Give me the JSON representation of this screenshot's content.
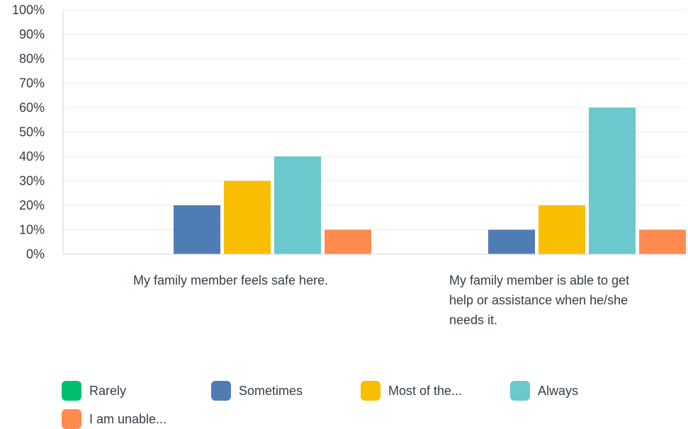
{
  "chart_data": {
    "type": "bar",
    "title": "",
    "xlabel": "",
    "ylabel": "",
    "ylim": [
      0,
      100
    ],
    "yticks": [
      "0%",
      "10%",
      "20%",
      "30%",
      "40%",
      "50%",
      "60%",
      "70%",
      "80%",
      "90%",
      "100%"
    ],
    "grid": true,
    "legend_position": "bottom",
    "categories": [
      "My family member feels safe here.",
      "My family member is able to get help or assistance when he/she needs it."
    ],
    "series": [
      {
        "name": "Rarely",
        "color": "#00bf6f",
        "values": [
          0,
          0
        ]
      },
      {
        "name": "Sometimes",
        "color": "#507cb6",
        "values": [
          20,
          10
        ]
      },
      {
        "name": "Most of the...",
        "color": "#f9be00",
        "values": [
          30,
          20
        ]
      },
      {
        "name": "Always",
        "color": "#6bc8cd",
        "values": [
          40,
          60
        ]
      },
      {
        "name": "I am unable...",
        "color": "#ff8b4f",
        "values": [
          10,
          10
        ]
      }
    ]
  }
}
